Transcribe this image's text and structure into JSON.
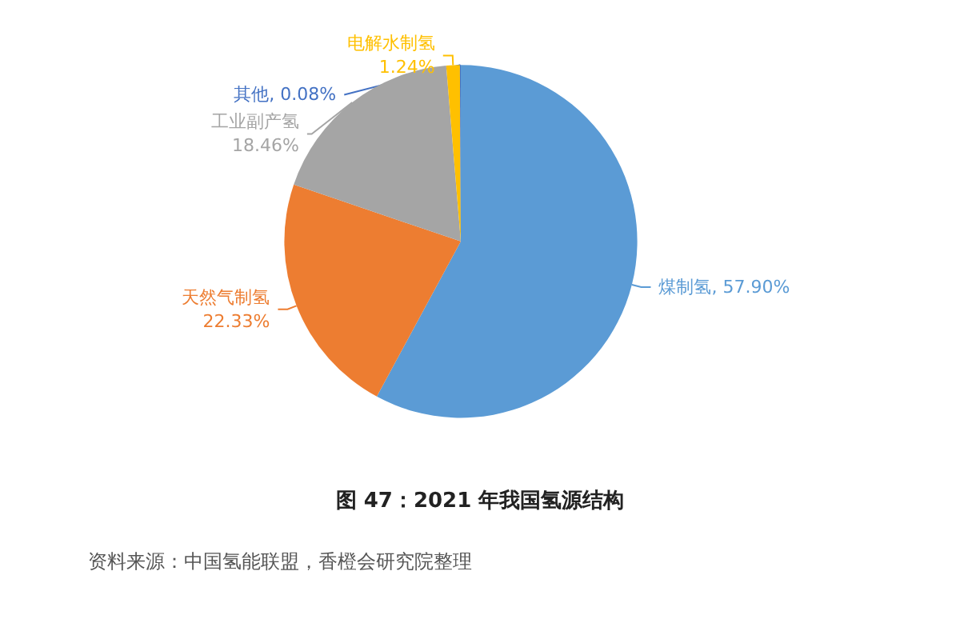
{
  "chart_data": {
    "type": "pie",
    "title": "图 47：2021 年我国氢源结构",
    "categories": [
      "煤制氢",
      "天然气制氢",
      "工业副产氢",
      "电解水制氢",
      "其他"
    ],
    "values": [
      57.9,
      22.33,
      18.46,
      1.24,
      0.08
    ],
    "value_labels": [
      "57.90%",
      "22.33%",
      "18.46%",
      "1.24%",
      "0.08%"
    ],
    "colors": [
      "#5b9bd5",
      "#ed7d31",
      "#a5a5a5",
      "#ffc000",
      "#4472c4"
    ],
    "annotations": [
      "资料来源：中国氢能联盟，香橙会研究院整理"
    ],
    "legend": false
  }
}
